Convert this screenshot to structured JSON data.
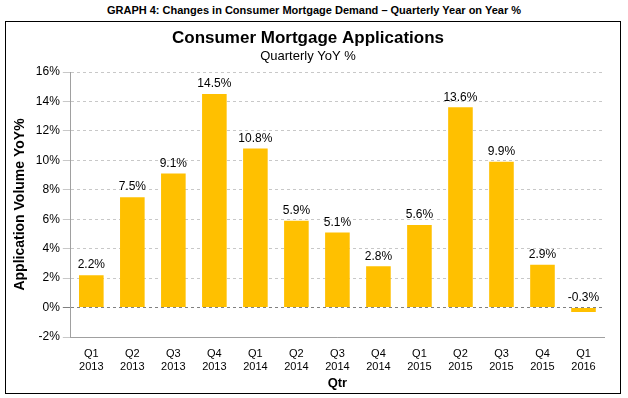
{
  "caption": "GRAPH 4: Changes in Consumer Mortgage Demand – Quarterly Year on Year %",
  "chart_data": {
    "type": "bar",
    "title": "Consumer Mortgage Applications",
    "subtitle": "Quarterly YoY %",
    "x_label": "Qtr",
    "y_label": "Application Volume YoY%",
    "categories": [
      "Q1 2013",
      "Q2 2013",
      "Q3 2013",
      "Q4 2013",
      "Q1 2014",
      "Q2 2014",
      "Q3 2014",
      "Q4 2014",
      "Q1 2015",
      "Q2 2015",
      "Q3 2015",
      "Q4 2015",
      "Q1 2016"
    ],
    "values": [
      2.2,
      7.5,
      9.1,
      14.5,
      10.8,
      5.9,
      5.1,
      2.8,
      5.6,
      13.6,
      9.9,
      2.9,
      -0.3
    ],
    "value_labels": [
      "2.2%",
      "7.5%",
      "9.1%",
      "14.5%",
      "10.8%",
      "5.9%",
      "5.1%",
      "2.8%",
      "5.6%",
      "13.6%",
      "9.9%",
      "2.9%",
      "-0.3%"
    ],
    "data_labels": true,
    "color": "#ffc000",
    "ylim": [
      -2,
      16
    ],
    "yticks": [
      {
        "value": -2,
        "label": "-2%"
      },
      {
        "value": 0,
        "label": "0%"
      },
      {
        "value": 2,
        "label": "2%"
      },
      {
        "value": 4,
        "label": "4%"
      },
      {
        "value": 6,
        "label": "6%"
      },
      {
        "value": 8,
        "label": "8%"
      },
      {
        "value": 10,
        "label": "10%"
      },
      {
        "value": 12,
        "label": "12%"
      },
      {
        "value": 14,
        "label": "14%"
      },
      {
        "value": 16,
        "label": "16%"
      }
    ],
    "grid": true
  }
}
